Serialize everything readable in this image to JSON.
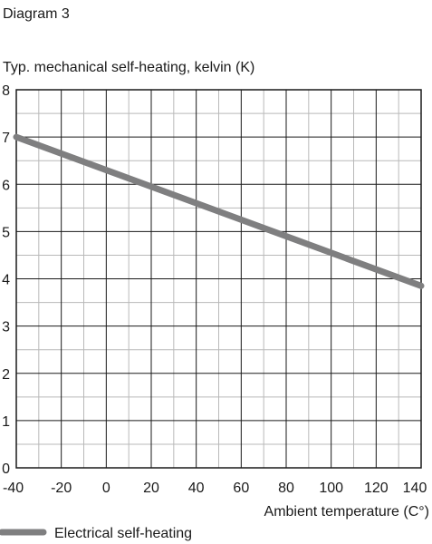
{
  "figure_label": "Diagram 3",
  "chart_data": {
    "type": "line",
    "title": "",
    "ylabel": "Typ. mechanical self-heating, kelvin (K)",
    "xlabel": "Ambient temperature (C°)",
    "xlim": [
      -40,
      140
    ],
    "ylim": [
      0,
      8
    ],
    "x_ticks": [
      -40,
      -20,
      0,
      20,
      40,
      60,
      80,
      100,
      120,
      140
    ],
    "y_ticks": [
      0,
      1,
      2,
      3,
      4,
      5,
      6,
      7,
      8
    ],
    "x_tick_labels": [
      "-40",
      "-20",
      "0",
      "20",
      "40",
      "60",
      "80",
      "100",
      "120",
      "140"
    ],
    "y_tick_labels": [
      "0",
      "1",
      "2",
      "3",
      "4",
      "5",
      "6",
      "7",
      "8"
    ],
    "grid": true,
    "legend_position": "bottom-left",
    "series": [
      {
        "name": "Electrical self-heating",
        "color": "#7f7f80",
        "x": [
          -40,
          140
        ],
        "y": [
          7.0,
          3.85
        ]
      }
    ]
  },
  "colors": {
    "grid": "#b9b9b9",
    "axis": "#1a1a1a",
    "text": "#1a1a1a"
  }
}
